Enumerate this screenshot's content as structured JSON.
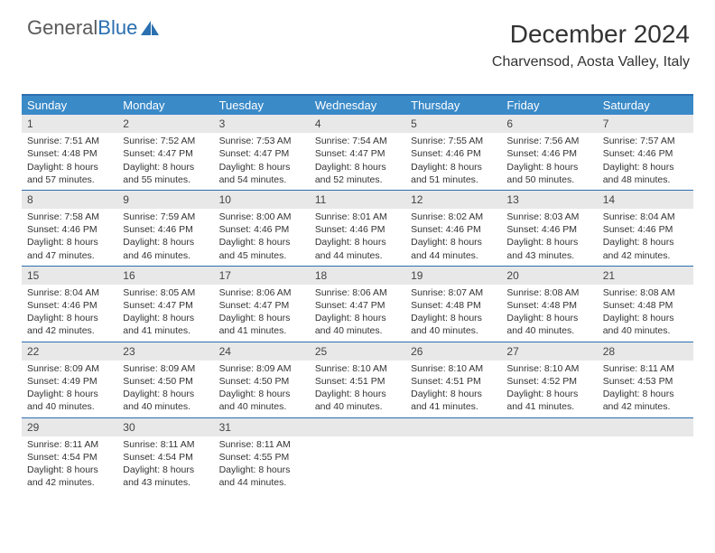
{
  "logo": {
    "word1": "General",
    "word2": "Blue"
  },
  "title": "December 2024",
  "subtitle": "Charvensod, Aosta Valley, Italy",
  "colors": {
    "header_bg": "#3a8ac8",
    "header_text": "#ffffff",
    "border": "#2a6fb0",
    "daynum_bg": "#e8e8e8",
    "text": "#333333",
    "logo_gray": "#5a5a5a",
    "logo_blue": "#2a6fb0"
  },
  "typography": {
    "title_fontsize": 28,
    "subtitle_fontsize": 16,
    "dayheader_fontsize": 13,
    "cell_fontsize": 10.5,
    "daynum_fontsize": 12
  },
  "day_names": [
    "Sunday",
    "Monday",
    "Tuesday",
    "Wednesday",
    "Thursday",
    "Friday",
    "Saturday"
  ],
  "weeks": [
    [
      {
        "n": "1",
        "sr": "Sunrise: 7:51 AM",
        "ss": "Sunset: 4:48 PM",
        "d1": "Daylight: 8 hours",
        "d2": "and 57 minutes."
      },
      {
        "n": "2",
        "sr": "Sunrise: 7:52 AM",
        "ss": "Sunset: 4:47 PM",
        "d1": "Daylight: 8 hours",
        "d2": "and 55 minutes."
      },
      {
        "n": "3",
        "sr": "Sunrise: 7:53 AM",
        "ss": "Sunset: 4:47 PM",
        "d1": "Daylight: 8 hours",
        "d2": "and 54 minutes."
      },
      {
        "n": "4",
        "sr": "Sunrise: 7:54 AM",
        "ss": "Sunset: 4:47 PM",
        "d1": "Daylight: 8 hours",
        "d2": "and 52 minutes."
      },
      {
        "n": "5",
        "sr": "Sunrise: 7:55 AM",
        "ss": "Sunset: 4:46 PM",
        "d1": "Daylight: 8 hours",
        "d2": "and 51 minutes."
      },
      {
        "n": "6",
        "sr": "Sunrise: 7:56 AM",
        "ss": "Sunset: 4:46 PM",
        "d1": "Daylight: 8 hours",
        "d2": "and 50 minutes."
      },
      {
        "n": "7",
        "sr": "Sunrise: 7:57 AM",
        "ss": "Sunset: 4:46 PM",
        "d1": "Daylight: 8 hours",
        "d2": "and 48 minutes."
      }
    ],
    [
      {
        "n": "8",
        "sr": "Sunrise: 7:58 AM",
        "ss": "Sunset: 4:46 PM",
        "d1": "Daylight: 8 hours",
        "d2": "and 47 minutes."
      },
      {
        "n": "9",
        "sr": "Sunrise: 7:59 AM",
        "ss": "Sunset: 4:46 PM",
        "d1": "Daylight: 8 hours",
        "d2": "and 46 minutes."
      },
      {
        "n": "10",
        "sr": "Sunrise: 8:00 AM",
        "ss": "Sunset: 4:46 PM",
        "d1": "Daylight: 8 hours",
        "d2": "and 45 minutes."
      },
      {
        "n": "11",
        "sr": "Sunrise: 8:01 AM",
        "ss": "Sunset: 4:46 PM",
        "d1": "Daylight: 8 hours",
        "d2": "and 44 minutes."
      },
      {
        "n": "12",
        "sr": "Sunrise: 8:02 AM",
        "ss": "Sunset: 4:46 PM",
        "d1": "Daylight: 8 hours",
        "d2": "and 44 minutes."
      },
      {
        "n": "13",
        "sr": "Sunrise: 8:03 AM",
        "ss": "Sunset: 4:46 PM",
        "d1": "Daylight: 8 hours",
        "d2": "and 43 minutes."
      },
      {
        "n": "14",
        "sr": "Sunrise: 8:04 AM",
        "ss": "Sunset: 4:46 PM",
        "d1": "Daylight: 8 hours",
        "d2": "and 42 minutes."
      }
    ],
    [
      {
        "n": "15",
        "sr": "Sunrise: 8:04 AM",
        "ss": "Sunset: 4:46 PM",
        "d1": "Daylight: 8 hours",
        "d2": "and 42 minutes."
      },
      {
        "n": "16",
        "sr": "Sunrise: 8:05 AM",
        "ss": "Sunset: 4:47 PM",
        "d1": "Daylight: 8 hours",
        "d2": "and 41 minutes."
      },
      {
        "n": "17",
        "sr": "Sunrise: 8:06 AM",
        "ss": "Sunset: 4:47 PM",
        "d1": "Daylight: 8 hours",
        "d2": "and 41 minutes."
      },
      {
        "n": "18",
        "sr": "Sunrise: 8:06 AM",
        "ss": "Sunset: 4:47 PM",
        "d1": "Daylight: 8 hours",
        "d2": "and 40 minutes."
      },
      {
        "n": "19",
        "sr": "Sunrise: 8:07 AM",
        "ss": "Sunset: 4:48 PM",
        "d1": "Daylight: 8 hours",
        "d2": "and 40 minutes."
      },
      {
        "n": "20",
        "sr": "Sunrise: 8:08 AM",
        "ss": "Sunset: 4:48 PM",
        "d1": "Daylight: 8 hours",
        "d2": "and 40 minutes."
      },
      {
        "n": "21",
        "sr": "Sunrise: 8:08 AM",
        "ss": "Sunset: 4:48 PM",
        "d1": "Daylight: 8 hours",
        "d2": "and 40 minutes."
      }
    ],
    [
      {
        "n": "22",
        "sr": "Sunrise: 8:09 AM",
        "ss": "Sunset: 4:49 PM",
        "d1": "Daylight: 8 hours",
        "d2": "and 40 minutes."
      },
      {
        "n": "23",
        "sr": "Sunrise: 8:09 AM",
        "ss": "Sunset: 4:50 PM",
        "d1": "Daylight: 8 hours",
        "d2": "and 40 minutes."
      },
      {
        "n": "24",
        "sr": "Sunrise: 8:09 AM",
        "ss": "Sunset: 4:50 PM",
        "d1": "Daylight: 8 hours",
        "d2": "and 40 minutes."
      },
      {
        "n": "25",
        "sr": "Sunrise: 8:10 AM",
        "ss": "Sunset: 4:51 PM",
        "d1": "Daylight: 8 hours",
        "d2": "and 40 minutes."
      },
      {
        "n": "26",
        "sr": "Sunrise: 8:10 AM",
        "ss": "Sunset: 4:51 PM",
        "d1": "Daylight: 8 hours",
        "d2": "and 41 minutes."
      },
      {
        "n": "27",
        "sr": "Sunrise: 8:10 AM",
        "ss": "Sunset: 4:52 PM",
        "d1": "Daylight: 8 hours",
        "d2": "and 41 minutes."
      },
      {
        "n": "28",
        "sr": "Sunrise: 8:11 AM",
        "ss": "Sunset: 4:53 PM",
        "d1": "Daylight: 8 hours",
        "d2": "and 42 minutes."
      }
    ],
    [
      {
        "n": "29",
        "sr": "Sunrise: 8:11 AM",
        "ss": "Sunset: 4:54 PM",
        "d1": "Daylight: 8 hours",
        "d2": "and 42 minutes."
      },
      {
        "n": "30",
        "sr": "Sunrise: 8:11 AM",
        "ss": "Sunset: 4:54 PM",
        "d1": "Daylight: 8 hours",
        "d2": "and 43 minutes."
      },
      {
        "n": "31",
        "sr": "Sunrise: 8:11 AM",
        "ss": "Sunset: 4:55 PM",
        "d1": "Daylight: 8 hours",
        "d2": "and 44 minutes."
      },
      {
        "empty": true,
        "n": "x",
        "sr": "",
        "ss": "",
        "d1": "",
        "d2": ""
      },
      {
        "empty": true,
        "n": "x",
        "sr": "",
        "ss": "",
        "d1": "",
        "d2": ""
      },
      {
        "empty": true,
        "n": "x",
        "sr": "",
        "ss": "",
        "d1": "",
        "d2": ""
      },
      {
        "empty": true,
        "n": "x",
        "sr": "",
        "ss": "",
        "d1": "",
        "d2": ""
      }
    ]
  ]
}
